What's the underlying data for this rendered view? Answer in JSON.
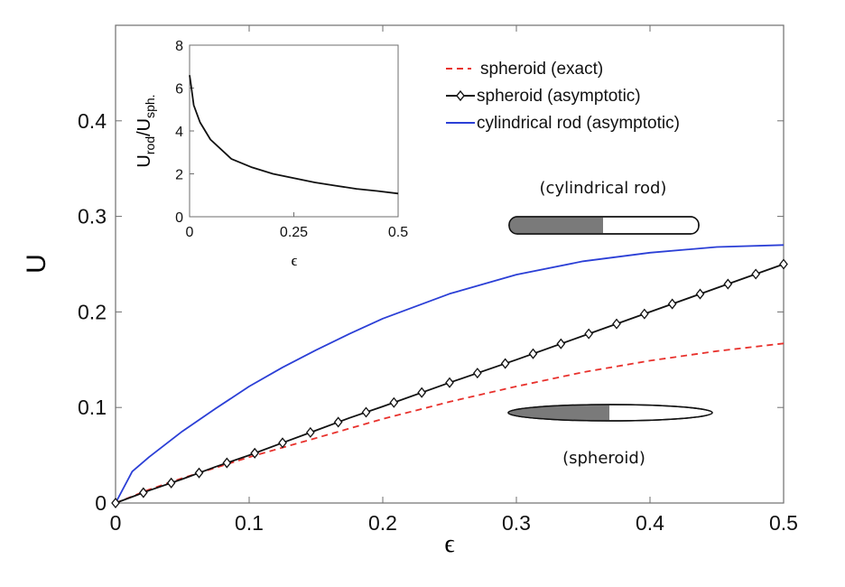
{
  "chart_data": [
    {
      "type": "line",
      "xlabel": "ϵ",
      "ylabel": "U",
      "xlim": [
        0,
        0.5
      ],
      "ylim": [
        0,
        0.5
      ],
      "x_ticks": [
        "0",
        "0.1",
        "0.2",
        "0.3",
        "0.4",
        "0.5"
      ],
      "y_ticks": [
        "0",
        "0.1",
        "0.2",
        "0.3",
        "0.4"
      ],
      "x": [
        0,
        0.0125,
        0.025,
        0.05,
        0.075,
        0.1,
        0.125,
        0.15,
        0.175,
        0.2,
        0.25,
        0.3,
        0.35,
        0.4,
        0.45,
        0.5
      ],
      "series": [
        {
          "name": "spheroid (exact)",
          "color": "#e8312c",
          "style": "dashed",
          "values": [
            0,
            0.007,
            0.014,
            0.026,
            0.037,
            0.048,
            0.058,
            0.068,
            0.078,
            0.088,
            0.106,
            0.122,
            0.137,
            0.149,
            0.159,
            0.167
          ]
        },
        {
          "name": "spheroid (asymptotic)",
          "color": "#111111",
          "style": "solid-diamond-markers",
          "values": [
            0,
            0.0065,
            0.013,
            0.025,
            0.038,
            0.05,
            0.063,
            0.076,
            0.089,
            0.101,
            0.126,
            0.15,
            0.175,
            0.2,
            0.225,
            0.25
          ]
        },
        {
          "name": "cylindrical rod (asymptotic)",
          "color": "#2b3fd6",
          "style": "solid",
          "values": [
            0,
            0.033,
            0.048,
            0.075,
            0.099,
            0.122,
            0.142,
            0.16,
            0.177,
            0.193,
            0.219,
            0.239,
            0.253,
            0.262,
            0.268,
            0.27
          ]
        }
      ]
    },
    {
      "type": "line",
      "inset": true,
      "xlabel": "ϵ",
      "ylabel": "U_rod/U_sph.",
      "xlim": [
        0,
        0.5
      ],
      "ylim": [
        0,
        8
      ],
      "x_ticks": [
        "0",
        "0.25",
        "0.5"
      ],
      "y_ticks": [
        "0",
        "2",
        "4",
        "6",
        "8"
      ],
      "x": [
        0,
        0.003,
        0.01,
        0.025,
        0.05,
        0.1,
        0.15,
        0.2,
        0.25,
        0.3,
        0.35,
        0.4,
        0.45,
        0.5
      ],
      "series": [
        {
          "color": "#111111",
          "values": [
            6.6,
            6.2,
            5.2,
            4.4,
            3.6,
            2.7,
            2.3,
            2.0,
            1.8,
            1.6,
            1.45,
            1.3,
            1.2,
            1.08
          ]
        }
      ]
    }
  ],
  "annotations": {
    "rod_label": "(cylindrical rod)",
    "spheroid_label": "(spheroid)"
  },
  "colors": {
    "frame": "#6e6e6e",
    "shape_dark": "#7a7a7a"
  }
}
